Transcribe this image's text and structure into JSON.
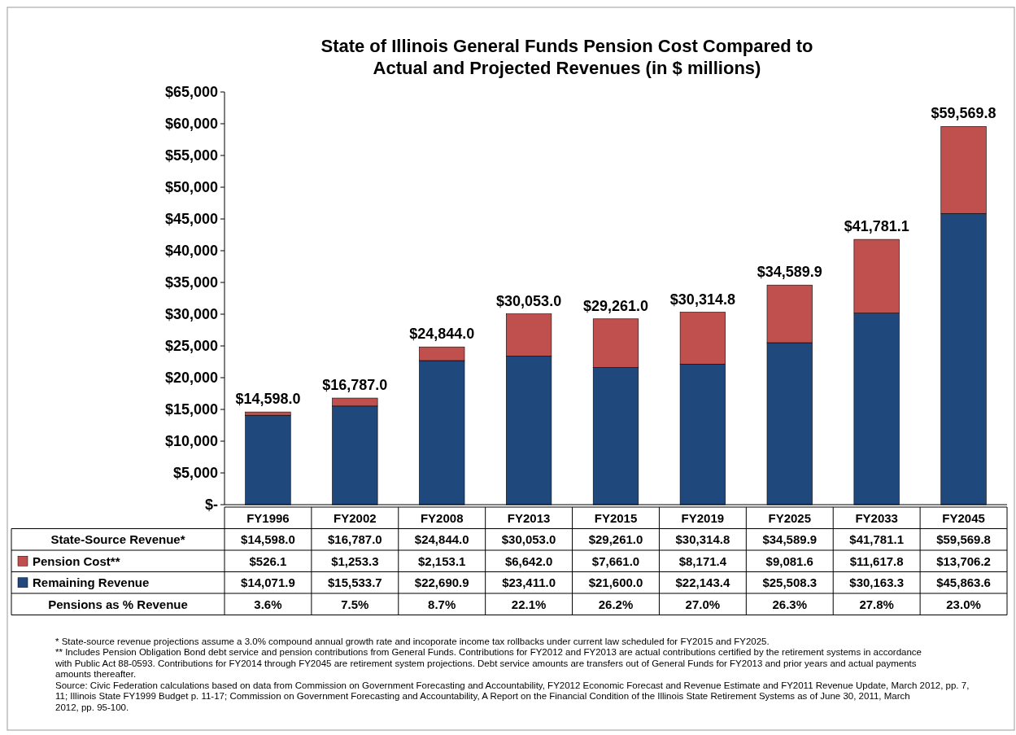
{
  "chart_data": {
    "type": "bar",
    "stacked": true,
    "title": "State of Illinois General Funds Pension Cost Compared to Actual and Projected Revenues (in $ millions)",
    "categories": [
      "FY1996",
      "FY2002",
      "FY2008",
      "FY2013",
      "FY2015",
      "FY2019",
      "FY2025",
      "FY2033",
      "FY2045"
    ],
    "series": [
      {
        "name": "Remaining Revenue",
        "color": "#1f497d",
        "values": [
          14071.9,
          15533.7,
          22690.9,
          23411.0,
          21600.0,
          22143.4,
          25508.3,
          30163.3,
          45863.6
        ],
        "value_labels": [
          "$14,071.9",
          "$15,533.7",
          "$22,690.9",
          "$23,411.0",
          "$21,600.0",
          "$22,143.4",
          "$25,508.3",
          "$30,163.3",
          "$45,863.6"
        ]
      },
      {
        "name": "Pension Cost**",
        "color": "#c0504d",
        "values": [
          526.1,
          1253.3,
          2153.1,
          6642.0,
          7661.0,
          8171.4,
          9081.6,
          11617.8,
          13706.2
        ],
        "value_labels": [
          "$526.1",
          "$1,253.3",
          "$2,153.1",
          "$6,642.0",
          "$7,661.0",
          "$8,171.4",
          "$9,081.6",
          "$11,617.8",
          "$13,706.2"
        ]
      }
    ],
    "totals": [
      "$14,598.0",
      "$16,787.0",
      "$24,844.0",
      "$30,053.0",
      "$29,261.0",
      "$30,314.8",
      "$34,589.9",
      "$41,781.1",
      "$59,569.8"
    ],
    "ylim": [
      0,
      65000
    ],
    "yticks": [
      {
        "value": 0,
        "label": "$-"
      },
      {
        "value": 5000,
        "label": "$5,000"
      },
      {
        "value": 10000,
        "label": "$10,000"
      },
      {
        "value": 15000,
        "label": "$15,000"
      },
      {
        "value": 20000,
        "label": "$20,000"
      },
      {
        "value": 25000,
        "label": "$25,000"
      },
      {
        "value": 30000,
        "label": "$30,000"
      },
      {
        "value": 35000,
        "label": "$35,000"
      },
      {
        "value": 40000,
        "label": "$40,000"
      },
      {
        "value": 45000,
        "label": "$45,000"
      },
      {
        "value": 50000,
        "label": "$50,000"
      },
      {
        "value": 55000,
        "label": "$55,000"
      },
      {
        "value": 60000,
        "label": "$60,000"
      },
      {
        "value": 65000,
        "label": "$65,000"
      }
    ],
    "grid": false,
    "legend": "bottom",
    "annotations": [
      "State-Source Revenue*",
      "Pensions as % Revenue",
      "3.6%",
      "7.5%",
      "8.7%",
      "22.1%",
      "26.2%",
      "27.0%",
      "26.3%",
      "27.8%",
      "23.0%",
      "* State-source revenue projections assume a 3.0% compound annual growth rate and incoporate income tax rollbacks under current law scheduled for FY2015 and FY2025.",
      "** Includes Pension Obligation Bond debt service and pension contributions from General Funds. Contributions for FY2012 and FY2013 are actual contributions certified by the retirement systems in accordance with Public Act 88-0593. Contributions for FY2014 through FY2045 are retirement system projections. Debt service amounts are transfers out of General Funds for FY2013 and prior years and actual payments amounts thereafter.",
      "Source: Civic Federation calculations based on data from Commission on Government Forecasting and Accountability, FY2012 Economic Forecast and Revenue Estimate and FY2011 Revenue Update, March 2012, pp. 7, 11; Illinois State FY1999 Budget p. 11-17; Commission on Government Forecasting and Accountability, A Report on the Financial Condition of the Illinois State Retirement Systems as of June 30, 2011, March 2012, pp. 95-100."
    ]
  }
}
